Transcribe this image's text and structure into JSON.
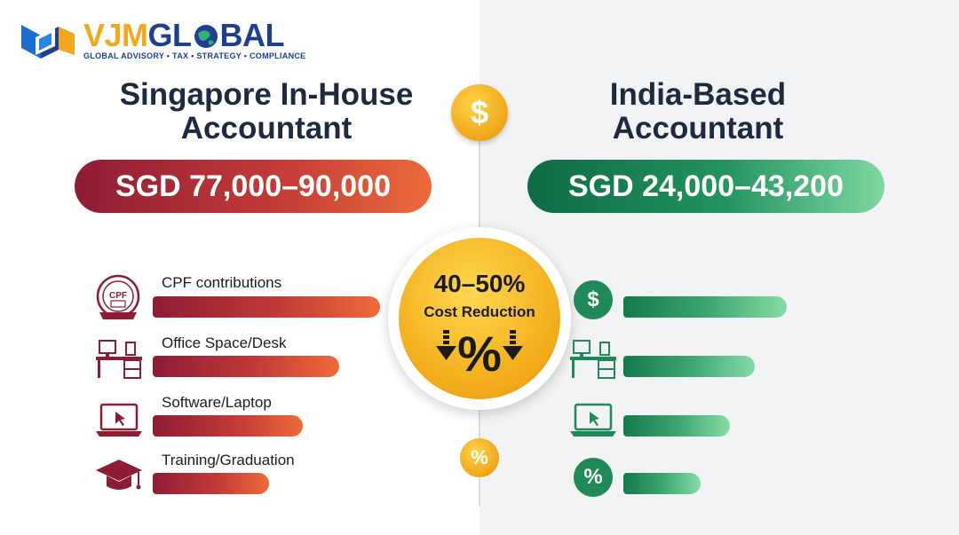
{
  "logo": {
    "word_part1": "VJM",
    "word_part2": "GL",
    "word_part3": "BAL",
    "tagline": "GLOBAL ADVISORY • TAX • STRATEGY • COMPLIANCE"
  },
  "left": {
    "title_line1": "Singapore In-House",
    "title_line2": "Accountant",
    "salary": "SGD 77,000–90,000",
    "items": [
      {
        "label": "CPF contributions",
        "icon": "cpf-seal-icon",
        "bar": 1.0
      },
      {
        "label": "Office Space/Desk",
        "icon": "desk-icon",
        "bar": 0.82
      },
      {
        "label": "Software/Laptop",
        "icon": "laptop-icon",
        "bar": 0.66
      },
      {
        "label": "Training/Graduation",
        "icon": "graduation-cap-icon",
        "bar": 0.51
      }
    ],
    "cpf_icon_text": "CPF"
  },
  "right": {
    "title_line1": "India-Based",
    "title_line2": "Accountant",
    "salary": "SGD 24,000–43,200",
    "items": [
      {
        "icon": "dollar-circle-icon",
        "bar": 0.72
      },
      {
        "icon": "desk-icon",
        "bar": 0.58
      },
      {
        "icon": "laptop-icon",
        "bar": 0.47
      },
      {
        "icon": "percent-circle-icon",
        "bar": 0.34
      }
    ]
  },
  "center": {
    "coin_symbol": "$",
    "percent": "40–50%",
    "label": "Cost Reduction",
    "small_coin_symbol": "%"
  },
  "colors": {
    "red_start": "#8e1c35",
    "red_end": "#ef6a38",
    "green_start": "#157a4c",
    "green_end": "#86dba6",
    "gold": "#f3ad1b",
    "navy": "#1c3f8f",
    "title": "#1d2a3f"
  }
}
